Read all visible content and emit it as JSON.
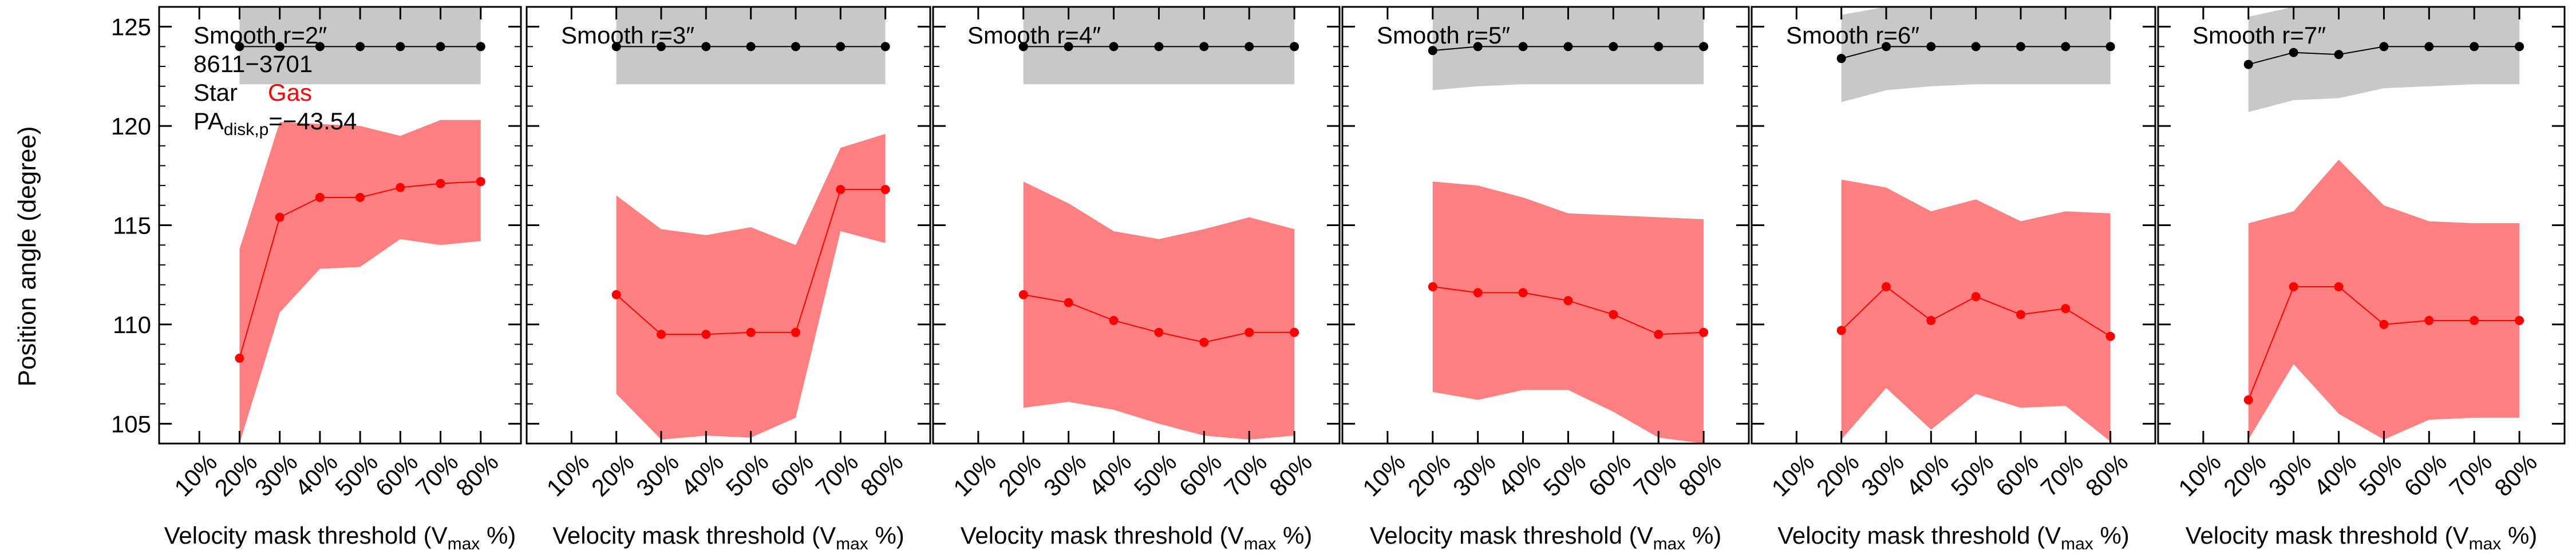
{
  "figure": {
    "ylabel": "Position angle (degree)",
    "xlabel_main": "Velocity mask threshold (V",
    "xlabel_sub": "max",
    "xlabel_end": " %)",
    "legend": {
      "galaxy_id": "8611−3701",
      "star_label": "Star",
      "gas_label": "Gas",
      "pa_prefix": "PA",
      "pa_subscript": "disk,p",
      "pa_value": "=−43.54"
    }
  },
  "colors": {
    "gas_band": "#ff8080",
    "gas_line": "#ff0000",
    "star_band": "#c8c8c8",
    "star_line": "#000000",
    "axis": "#000000"
  },
  "chart_data": [
    {
      "type": "line",
      "panel_title": "Smooth r=2″",
      "x_tick_labels": [
        "10%",
        "20%",
        "30%",
        "40%",
        "50%",
        "60%",
        "70%",
        "80%"
      ],
      "x_tick_values": [
        10,
        20,
        30,
        40,
        50,
        60,
        70,
        80
      ],
      "xlim": [
        0,
        90
      ],
      "ylim": [
        104,
        126
      ],
      "y_ticks": [
        105,
        110,
        115,
        120,
        125
      ],
      "x": [
        20,
        30,
        40,
        50,
        60,
        70,
        80
      ],
      "series": [
        {
          "name": "Gas",
          "values": [
            108.3,
            115.4,
            116.4,
            116.4,
            116.9,
            117.1,
            117.2
          ],
          "band_lower": [
            104.0,
            110.6,
            112.8,
            112.9,
            114.3,
            114.0,
            114.2
          ],
          "band_upper": [
            113.8,
            120.2,
            120.1,
            120.0,
            119.5,
            120.3,
            120.3
          ]
        },
        {
          "name": "Star",
          "values": [
            124.0,
            124.0,
            124.0,
            124.0,
            124.0,
            124.0,
            124.0
          ],
          "band_lower": [
            122.1,
            122.1,
            122.1,
            122.1,
            122.1,
            122.1,
            122.1
          ],
          "band_upper": [
            126.0,
            126.0,
            126.0,
            126.0,
            126.0,
            126.0,
            126.0
          ]
        }
      ]
    },
    {
      "type": "line",
      "panel_title": "Smooth r=3″",
      "x_tick_labels": [
        "10%",
        "20%",
        "30%",
        "40%",
        "50%",
        "60%",
        "70%",
        "80%"
      ],
      "x_tick_values": [
        10,
        20,
        30,
        40,
        50,
        60,
        70,
        80
      ],
      "xlim": [
        0,
        90
      ],
      "ylim": [
        104,
        126
      ],
      "y_ticks": [
        105,
        110,
        115,
        120,
        125
      ],
      "x": [
        20,
        30,
        40,
        50,
        60,
        70,
        80
      ],
      "series": [
        {
          "name": "Gas",
          "values": [
            111.5,
            109.5,
            109.5,
            109.6,
            109.6,
            116.8,
            116.8
          ],
          "band_lower": [
            106.5,
            104.2,
            104.4,
            104.3,
            105.3,
            114.7,
            114.1
          ],
          "band_upper": [
            116.5,
            114.8,
            114.5,
            114.9,
            114.0,
            118.9,
            119.6
          ]
        },
        {
          "name": "Star",
          "values": [
            124.0,
            124.0,
            124.0,
            124.0,
            124.0,
            124.0,
            124.0
          ],
          "band_lower": [
            122.1,
            122.1,
            122.1,
            122.1,
            122.1,
            122.1,
            122.1
          ],
          "band_upper": [
            126.0,
            126.0,
            126.0,
            126.0,
            126.0,
            126.0,
            126.0
          ]
        }
      ]
    },
    {
      "type": "line",
      "panel_title": "Smooth r=4″",
      "x_tick_labels": [
        "10%",
        "20%",
        "30%",
        "40%",
        "50%",
        "60%",
        "70%",
        "80%"
      ],
      "x_tick_values": [
        10,
        20,
        30,
        40,
        50,
        60,
        70,
        80
      ],
      "xlim": [
        0,
        90
      ],
      "ylim": [
        104,
        126
      ],
      "y_ticks": [
        105,
        110,
        115,
        120,
        125
      ],
      "x": [
        20,
        30,
        40,
        50,
        60,
        70,
        80
      ],
      "series": [
        {
          "name": "Gas",
          "values": [
            111.5,
            111.1,
            110.2,
            109.6,
            109.1,
            109.6,
            109.6
          ],
          "band_lower": [
            105.8,
            106.1,
            105.7,
            105.0,
            104.4,
            104.2,
            104.4
          ],
          "band_upper": [
            117.2,
            116.1,
            114.7,
            114.3,
            114.8,
            115.4,
            114.8
          ]
        },
        {
          "name": "Star",
          "values": [
            124.0,
            124.0,
            124.0,
            124.0,
            124.0,
            124.0,
            124.0
          ],
          "band_lower": [
            122.1,
            122.1,
            122.1,
            122.1,
            122.1,
            122.1,
            122.1
          ],
          "band_upper": [
            126.0,
            126.0,
            126.0,
            126.0,
            126.0,
            126.0,
            126.0
          ]
        }
      ]
    },
    {
      "type": "line",
      "panel_title": "Smooth r=5″",
      "x_tick_labels": [
        "10%",
        "20%",
        "30%",
        "40%",
        "50%",
        "60%",
        "70%",
        "80%"
      ],
      "x_tick_values": [
        10,
        20,
        30,
        40,
        50,
        60,
        70,
        80
      ],
      "xlim": [
        0,
        90
      ],
      "ylim": [
        104,
        126
      ],
      "y_ticks": [
        105,
        110,
        115,
        120,
        125
      ],
      "x": [
        20,
        30,
        40,
        50,
        60,
        70,
        80
      ],
      "series": [
        {
          "name": "Gas",
          "values": [
            111.9,
            111.6,
            111.6,
            111.2,
            110.5,
            109.5,
            109.6
          ],
          "band_lower": [
            106.6,
            106.2,
            106.7,
            106.7,
            105.6,
            104.3,
            104.0
          ],
          "band_upper": [
            117.2,
            117.0,
            116.4,
            115.6,
            115.5,
            115.4,
            115.3
          ]
        },
        {
          "name": "Star",
          "values": [
            123.8,
            124.0,
            124.0,
            124.0,
            124.0,
            124.0,
            124.0
          ],
          "band_lower": [
            121.8,
            122.0,
            122.1,
            122.1,
            122.1,
            122.1,
            122.1
          ],
          "band_upper": [
            126.0,
            126.0,
            126.0,
            126.0,
            126.0,
            126.0,
            126.0
          ]
        }
      ]
    },
    {
      "type": "line",
      "panel_title": "Smooth r=6″",
      "x_tick_labels": [
        "10%",
        "20%",
        "30%",
        "40%",
        "50%",
        "60%",
        "70%",
        "80%"
      ],
      "x_tick_values": [
        10,
        20,
        30,
        40,
        50,
        60,
        70,
        80
      ],
      "xlim": [
        0,
        90
      ],
      "ylim": [
        104,
        126
      ],
      "y_ticks": [
        105,
        110,
        115,
        120,
        125
      ],
      "x": [
        20,
        30,
        40,
        50,
        60,
        70,
        80
      ],
      "series": [
        {
          "name": "Gas",
          "values": [
            109.7,
            111.9,
            110.2,
            111.4,
            110.5,
            110.8,
            109.4
          ],
          "band_lower": [
            104.2,
            106.8,
            104.7,
            106.5,
            105.8,
            105.9,
            104.1
          ],
          "band_upper": [
            117.3,
            116.9,
            115.7,
            116.3,
            115.2,
            115.7,
            115.6
          ]
        },
        {
          "name": "Star",
          "values": [
            123.4,
            124.0,
            124.0,
            124.0,
            124.0,
            124.0,
            124.0
          ],
          "band_lower": [
            121.2,
            121.8,
            122.0,
            122.1,
            122.1,
            122.1,
            122.1
          ],
          "band_upper": [
            125.6,
            126.0,
            126.0,
            126.0,
            126.0,
            126.0,
            126.0
          ]
        }
      ]
    },
    {
      "type": "line",
      "panel_title": "Smooth r=7″",
      "x_tick_labels": [
        "10%",
        "20%",
        "30%",
        "40%",
        "50%",
        "60%",
        "70%",
        "80%"
      ],
      "x_tick_values": [
        10,
        20,
        30,
        40,
        50,
        60,
        70,
        80
      ],
      "xlim": [
        0,
        90
      ],
      "ylim": [
        104,
        126
      ],
      "y_ticks": [
        105,
        110,
        115,
        120,
        125
      ],
      "x": [
        20,
        30,
        40,
        50,
        60,
        70,
        80
      ],
      "series": [
        {
          "name": "Gas",
          "values": [
            106.2,
            111.9,
            111.9,
            110.0,
            110.2,
            110.2,
            110.2
          ],
          "band_lower": [
            104.2,
            108.0,
            105.5,
            104.2,
            105.2,
            105.3,
            105.3
          ],
          "band_upper": [
            115.1,
            115.7,
            118.3,
            116.0,
            115.2,
            115.1,
            115.1
          ]
        },
        {
          "name": "Star",
          "values": [
            123.1,
            123.7,
            123.6,
            124.0,
            124.0,
            124.0,
            124.0
          ],
          "band_lower": [
            120.7,
            121.3,
            121.4,
            121.9,
            122.0,
            122.1,
            122.1
          ],
          "band_upper": [
            125.5,
            126.0,
            126.0,
            126.0,
            126.0,
            126.0,
            126.0
          ]
        }
      ]
    }
  ]
}
